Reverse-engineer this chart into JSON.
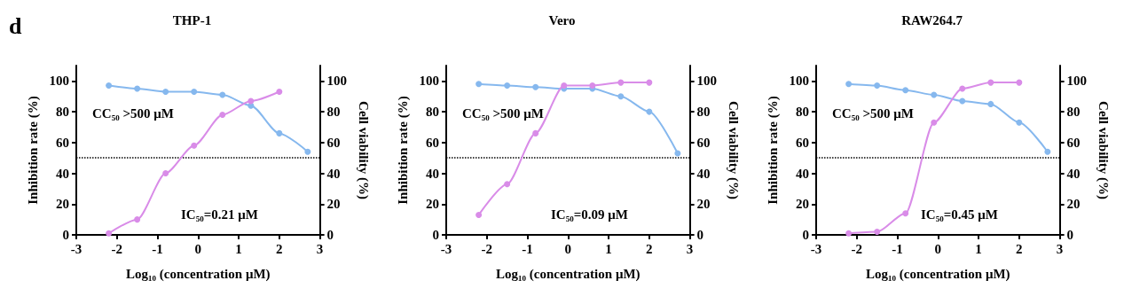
{
  "chart_data": [
    {
      "type": "line",
      "title": "THP-1",
      "xlabel": "Log₁₀ (concentration μM)",
      "ylabel": "Inhibition rate (%)",
      "y2label": "Cell viability (%)",
      "annotations": [
        "d",
        "CC₅₀ >500 μM",
        "IC₅₀=0.21 μM"
      ],
      "xlim": [
        -3,
        3
      ],
      "xticks": [
        -3,
        -2,
        -1,
        0,
        1,
        2,
        3
      ],
      "ylim": [
        0,
        110
      ],
      "yticks": [
        0,
        20,
        40,
        60,
        80,
        100
      ],
      "y2lim": [
        0,
        110
      ],
      "y2ticks": [
        0,
        20,
        40,
        60,
        80,
        100
      ],
      "grid": false,
      "marker": "circle",
      "line_style": "solid",
      "ref_lines": [
        {
          "axis": "y",
          "value": 50,
          "line_style": "dotted",
          "color": "#000000"
        }
      ],
      "series": [
        {
          "color": "#d98ce8",
          "x": [
            -2.2,
            -1.5,
            -0.8,
            -0.1,
            0.6,
            1.3,
            2.0
          ],
          "values": [
            1,
            10,
            40,
            58,
            78,
            87,
            93
          ]
        },
        {
          "color": "#86b8ee",
          "axis": "y2",
          "x": [
            -2.2,
            -1.5,
            -0.8,
            -0.1,
            0.6,
            1.3,
            2.0,
            2.7
          ],
          "values": [
            97,
            95,
            93,
            93,
            91,
            84,
            66,
            54
          ]
        }
      ]
    },
    {
      "type": "line",
      "title": "Vero",
      "xlabel": "Log₁₀ (concentration μM)",
      "ylabel": "Inhibition rate (%)",
      "y2label": "Cell viability (%)",
      "annotations": [
        "CC₅₀ >500 μM",
        "IC₅₀=0.09 μM"
      ],
      "xlim": [
        -3,
        3
      ],
      "xticks": [
        -3,
        -2,
        -1,
        0,
        1,
        2,
        3
      ],
      "ylim": [
        0,
        110
      ],
      "yticks": [
        0,
        20,
        40,
        60,
        80,
        100
      ],
      "y2lim": [
        0,
        110
      ],
      "y2ticks": [
        0,
        20,
        40,
        60,
        80,
        100
      ],
      "grid": false,
      "marker": "circle",
      "line_style": "solid",
      "ref_lines": [
        {
          "axis": "y",
          "value": 50,
          "line_style": "dotted",
          "color": "#000000"
        }
      ],
      "series": [
        {
          "color": "#d98ce8",
          "x": [
            -2.2,
            -1.5,
            -0.8,
            -0.1,
            0.6,
            1.3,
            2.0
          ],
          "values": [
            13,
            33,
            66,
            97,
            97,
            99,
            99
          ]
        },
        {
          "color": "#86b8ee",
          "axis": "y2",
          "x": [
            -2.2,
            -1.5,
            -0.8,
            -0.1,
            0.6,
            1.3,
            2.0,
            2.7
          ],
          "values": [
            98,
            97,
            96,
            95,
            95,
            90,
            80,
            53
          ]
        }
      ]
    },
    {
      "type": "line",
      "title": "RAW264.7",
      "xlabel": "Log₁₀ (concentration μM)",
      "ylabel": "Inhibition rate (%)",
      "y2label": "Cell viability (%)",
      "annotations": [
        "CC₅₀ >500 μM",
        "IC₅₀=0.45 μM"
      ],
      "xlim": [
        -3,
        3
      ],
      "xticks": [
        -3,
        -2,
        -1,
        0,
        1,
        2,
        3
      ],
      "ylim": [
        0,
        110
      ],
      "yticks": [
        0,
        20,
        40,
        60,
        80,
        100
      ],
      "y2lim": [
        0,
        110
      ],
      "y2ticks": [
        0,
        20,
        40,
        60,
        80,
        100
      ],
      "grid": false,
      "marker": "circle",
      "line_style": "solid",
      "ref_lines": [
        {
          "axis": "y",
          "value": 50,
          "line_style": "dotted",
          "color": "#000000"
        }
      ],
      "series": [
        {
          "color": "#d98ce8",
          "x": [
            -2.2,
            -1.5,
            -0.8,
            -0.1,
            0.6,
            1.3,
            2.0
          ],
          "values": [
            1,
            2,
            14,
            73,
            95,
            99,
            99
          ]
        },
        {
          "color": "#86b8ee",
          "axis": "y2",
          "x": [
            -2.2,
            -1.5,
            -0.8,
            -0.1,
            0.6,
            1.3,
            2.0,
            2.7
          ],
          "values": [
            98,
            97,
            94,
            91,
            87,
            85,
            73,
            54
          ]
        }
      ]
    }
  ]
}
